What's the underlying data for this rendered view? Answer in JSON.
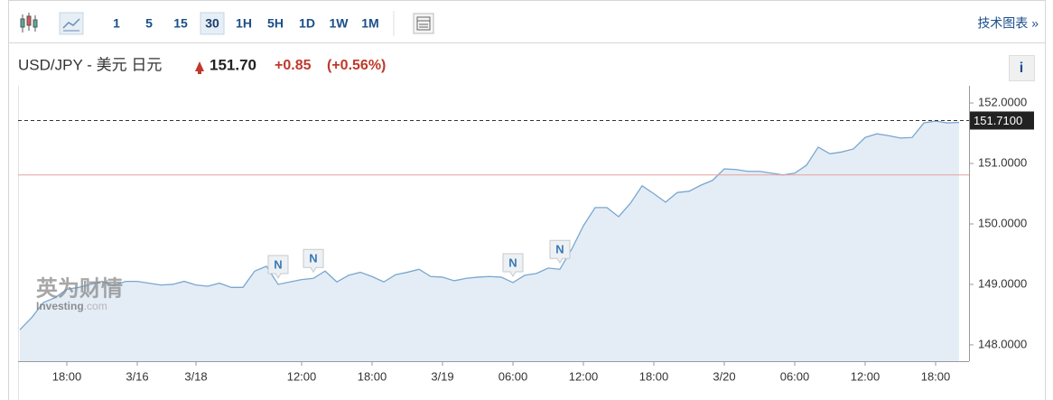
{
  "toolbar": {
    "intervals": [
      "1",
      "5",
      "15",
      "30",
      "1H",
      "5H",
      "1D",
      "1W",
      "1M"
    ],
    "selected": "30",
    "link": "技术图表 »"
  },
  "quote": {
    "symbol": "USD/JPY - 美元 日元",
    "price": "151.70",
    "change": "+0.85",
    "change_pct": "(+0.56%)",
    "info": "i"
  },
  "watermark": {
    "cn": "英为财情",
    "en": "Investing",
    "en_suffix": ".com"
  },
  "chart_data": {
    "type": "line",
    "categories": [
      "",
      null,
      null,
      null,
      "18:00",
      null,
      null,
      null,
      null,
      null,
      "3/16",
      null,
      null,
      null,
      null,
      "3/18",
      null,
      null,
      null,
      null,
      null,
      null,
      null,
      null,
      "12:00",
      null,
      null,
      null,
      null,
      null,
      "18:00",
      null,
      null,
      null,
      null,
      null,
      "3/19",
      null,
      null,
      null,
      null,
      null,
      "06:00",
      null,
      null,
      null,
      null,
      null,
      "12:00",
      null,
      null,
      null,
      null,
      null,
      "18:00",
      null,
      null,
      null,
      null,
      null,
      "3/20",
      null,
      null,
      null,
      null,
      null,
      "06:00",
      null,
      null,
      null,
      null,
      null,
      "12:00",
      null,
      null,
      null,
      null,
      null,
      "18:00",
      null,
      null
    ],
    "series": [
      {
        "name": "USD/JPY",
        "color": "#7aa7cf",
        "fill": "#e4edf6",
        "values": [
          148.25,
          148.45,
          148.7,
          148.78,
          148.92,
          148.95,
          149.0,
          149.05,
          148.98,
          149.05,
          149.05,
          149.02,
          148.99,
          149.0,
          149.05,
          148.99,
          148.97,
          149.02,
          148.95,
          148.95,
          149.22,
          149.3,
          149.0,
          149.04,
          149.08,
          149.1,
          149.22,
          149.04,
          149.15,
          149.2,
          149.13,
          149.04,
          149.16,
          149.2,
          149.25,
          149.13,
          149.12,
          149.06,
          149.1,
          149.12,
          149.13,
          149.12,
          149.03,
          149.15,
          149.18,
          149.27,
          149.25,
          149.58,
          149.97,
          150.27,
          150.27,
          150.12,
          150.34,
          150.63,
          150.5,
          150.36,
          150.52,
          150.54,
          150.64,
          150.72,
          150.91,
          150.9,
          150.87,
          150.87,
          150.84,
          150.81,
          150.84,
          150.97,
          151.27,
          151.16,
          151.19,
          151.24,
          151.43,
          151.49,
          151.46,
          151.42,
          151.43,
          151.67,
          151.7,
          151.67,
          151.68
        ]
      }
    ],
    "ylim": [
      147.73,
      152.21
    ],
    "yticks": [
      {
        "value": 148,
        "label": "148.0000"
      },
      {
        "value": 149,
        "label": "149.0000"
      },
      {
        "value": 150,
        "label": "150.0000"
      },
      {
        "value": 151,
        "label": "151.0000"
      },
      {
        "value": 152,
        "label": "152.0000"
      }
    ],
    "current_price": {
      "value": 151.71,
      "label": "151.7100"
    },
    "reference_line": {
      "value": 150.81,
      "color": "#e8a0a0"
    },
    "annotations": [
      {
        "label": "N",
        "index": 22
      },
      {
        "label": "N",
        "index": 25
      },
      {
        "label": "N",
        "index": 42
      },
      {
        "label": "N",
        "index": 46
      }
    ]
  }
}
